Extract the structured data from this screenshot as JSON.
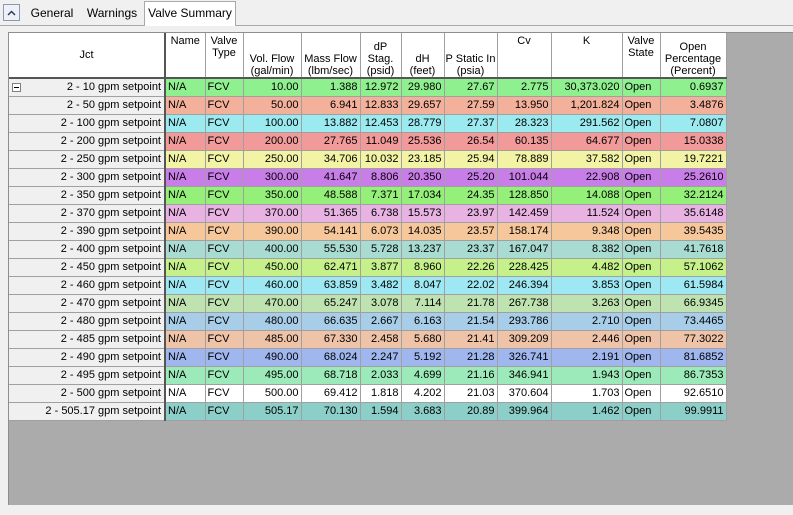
{
  "tabs": [
    {
      "label": "General"
    },
    {
      "label": "Warnings"
    },
    {
      "label": "Valve Summary"
    }
  ],
  "table": {
    "headers": {
      "jct": "Jct",
      "name": "Name",
      "valve_type": "Valve Type",
      "vol_flow": "Vol. Flow (gal/min)",
      "mass_flow": "Mass Flow (lbm/sec)",
      "dp_stag": "dP Stag. (psid)",
      "dh": "dH (feet)",
      "p_static_in": "P Static In (psia)",
      "cv": "Cv",
      "k": "K",
      "valve_state": "Valve State",
      "open_pct": "Open Percentage (Percent)"
    },
    "rows": [
      {
        "jct": "2 - 10 gpm setpoint",
        "name": "N/A",
        "type": "FCV",
        "flow": "10.00",
        "mass": "1.388",
        "dp": "12.972",
        "dh": "29.980",
        "ps": "27.67",
        "cv": "2.775",
        "k": "30,373.020",
        "state": "Open",
        "pct": "0.6937",
        "color": "#8ef08e"
      },
      {
        "jct": "2 - 50 gpm setpoint",
        "name": "N/A",
        "type": "FCV",
        "flow": "50.00",
        "mass": "6.941",
        "dp": "12.833",
        "dh": "29.657",
        "ps": "27.59",
        "cv": "13.950",
        "k": "1,201.824",
        "state": "Open",
        "pct": "3.4876",
        "color": "#f3b09a"
      },
      {
        "jct": "2 - 100 gpm setpoint",
        "name": "N/A",
        "type": "FCV",
        "flow": "100.00",
        "mass": "13.882",
        "dp": "12.453",
        "dh": "28.779",
        "ps": "27.37",
        "cv": "28.323",
        "k": "291.562",
        "state": "Open",
        "pct": "7.0807",
        "color": "#9beaf0"
      },
      {
        "jct": "2 - 200 gpm setpoint",
        "name": "N/A",
        "type": "FCV",
        "flow": "200.00",
        "mass": "27.765",
        "dp": "11.049",
        "dh": "25.536",
        "ps": "26.54",
        "cv": "60.135",
        "k": "64.677",
        "state": "Open",
        "pct": "15.0338",
        "color": "#f29a9a"
      },
      {
        "jct": "2 - 250 gpm setpoint",
        "name": "N/A",
        "type": "FCV",
        "flow": "250.00",
        "mass": "34.706",
        "dp": "10.032",
        "dh": "23.185",
        "ps": "25.94",
        "cv": "78.889",
        "k": "37.582",
        "state": "Open",
        "pct": "19.7221",
        "color": "#f3f3a5"
      },
      {
        "jct": "2 - 300 gpm setpoint",
        "name": "N/A",
        "type": "FCV",
        "flow": "300.00",
        "mass": "41.647",
        "dp": "8.806",
        "dh": "20.350",
        "ps": "25.20",
        "cv": "101.044",
        "k": "22.908",
        "state": "Open",
        "pct": "25.2610",
        "color": "#c97de8"
      },
      {
        "jct": "2 - 350 gpm setpoint",
        "name": "N/A",
        "type": "FCV",
        "flow": "350.00",
        "mass": "48.588",
        "dp": "7.371",
        "dh": "17.034",
        "ps": "24.35",
        "cv": "128.850",
        "k": "14.088",
        "state": "Open",
        "pct": "32.2124",
        "color": "#95f07a"
      },
      {
        "jct": "2 - 370 gpm setpoint",
        "name": "N/A",
        "type": "FCV",
        "flow": "370.00",
        "mass": "51.365",
        "dp": "6.738",
        "dh": "15.573",
        "ps": "23.97",
        "cv": "142.459",
        "k": "11.524",
        "state": "Open",
        "pct": "35.6148",
        "color": "#e8b3e3"
      },
      {
        "jct": "2 - 390 gpm setpoint",
        "name": "N/A",
        "type": "FCV",
        "flow": "390.00",
        "mass": "54.141",
        "dp": "6.073",
        "dh": "14.035",
        "ps": "23.57",
        "cv": "158.174",
        "k": "9.348",
        "state": "Open",
        "pct": "39.5435",
        "color": "#f5c79a"
      },
      {
        "jct": "2 - 400 gpm setpoint",
        "name": "N/A",
        "type": "FCV",
        "flow": "400.00",
        "mass": "55.530",
        "dp": "5.728",
        "dh": "13.237",
        "ps": "23.37",
        "cv": "167.047",
        "k": "8.382",
        "state": "Open",
        "pct": "41.7618",
        "color": "#a8dcd3"
      },
      {
        "jct": "2 - 450 gpm setpoint",
        "name": "N/A",
        "type": "FCV",
        "flow": "450.00",
        "mass": "62.471",
        "dp": "3.877",
        "dh": "8.960",
        "ps": "22.26",
        "cv": "228.425",
        "k": "4.482",
        "state": "Open",
        "pct": "57.1062",
        "color": "#c5f08a"
      },
      {
        "jct": "2 - 460 gpm setpoint",
        "name": "N/A",
        "type": "FCV",
        "flow": "460.00",
        "mass": "63.859",
        "dp": "3.482",
        "dh": "8.047",
        "ps": "22.02",
        "cv": "246.394",
        "k": "3.853",
        "state": "Open",
        "pct": "61.5984",
        "color": "#9de8f3"
      },
      {
        "jct": "2 - 470 gpm setpoint",
        "name": "N/A",
        "type": "FCV",
        "flow": "470.00",
        "mass": "65.247",
        "dp": "3.078",
        "dh": "7.114",
        "ps": "21.78",
        "cv": "267.738",
        "k": "3.263",
        "state": "Open",
        "pct": "66.9345",
        "color": "#bfe3b0"
      },
      {
        "jct": "2 - 480 gpm setpoint",
        "name": "N/A",
        "type": "FCV",
        "flow": "480.00",
        "mass": "66.635",
        "dp": "2.667",
        "dh": "6.163",
        "ps": "21.54",
        "cv": "293.786",
        "k": "2.710",
        "state": "Open",
        "pct": "73.4465",
        "color": "#a7cde8"
      },
      {
        "jct": "2 - 485 gpm setpoint",
        "name": "N/A",
        "type": "FCV",
        "flow": "485.00",
        "mass": "67.330",
        "dp": "2.458",
        "dh": "5.680",
        "ps": "21.41",
        "cv": "309.209",
        "k": "2.446",
        "state": "Open",
        "pct": "77.3022",
        "color": "#eec3a8"
      },
      {
        "jct": "2 - 490 gpm setpoint",
        "name": "N/A",
        "type": "FCV",
        "flow": "490.00",
        "mass": "68.024",
        "dp": "2.247",
        "dh": "5.192",
        "ps": "21.28",
        "cv": "326.741",
        "k": "2.191",
        "state": "Open",
        "pct": "81.6852",
        "color": "#9fb6ee"
      },
      {
        "jct": "2 - 495 gpm setpoint",
        "name": "N/A",
        "type": "FCV",
        "flow": "495.00",
        "mass": "68.718",
        "dp": "2.033",
        "dh": "4.699",
        "ps": "21.16",
        "cv": "346.941",
        "k": "1.943",
        "state": "Open",
        "pct": "86.7353",
        "color": "#9ceab9"
      },
      {
        "jct": "2 - 500 gpm setpoint",
        "name": "N/A",
        "type": "FCV",
        "flow": "500.00",
        "mass": "69.412",
        "dp": "1.818",
        "dh": "4.202",
        "ps": "21.03",
        "cv": "370.604",
        "k": "1.703",
        "state": "Open",
        "pct": "92.6510",
        "color": "#ffffff"
      },
      {
        "jct": "2 - 505.17 gpm setpoint",
        "name": "N/A",
        "type": "FCV",
        "flow": "505.17",
        "mass": "70.130",
        "dp": "1.594",
        "dh": "3.683",
        "ps": "20.89",
        "cv": "399.964",
        "k": "1.462",
        "state": "Open",
        "pct": "99.9911",
        "color": "#8ccfc9"
      }
    ]
  }
}
